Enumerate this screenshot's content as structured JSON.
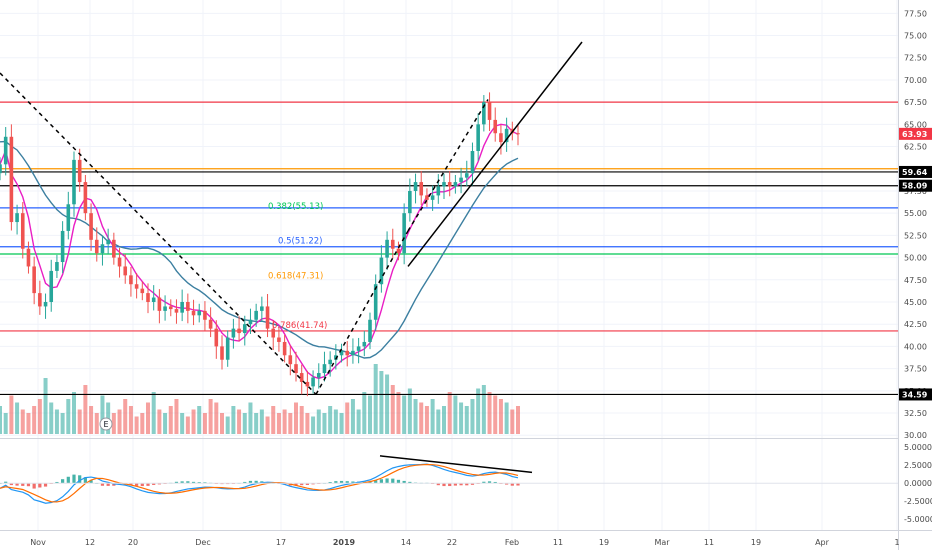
{
  "chart_data": [
    {
      "type": "candlestick",
      "price_axis": {
        "range": [
          29.8,
          79
        ],
        "ticks": [
          "77.50",
          "75.00",
          "72.50",
          "70.00",
          "67.50",
          "65.00",
          "62.50",
          "60.00",
          "57.50",
          "55.00",
          "52.50",
          "50.00",
          "47.50",
          "45.00",
          "42.50",
          "40.00",
          "37.50",
          "35.00",
          "32.50",
          "30.00"
        ],
        "scale": "linear"
      },
      "time_axis": {
        "ticks": [
          "Nov",
          "12",
          "20",
          "Dec",
          "17",
          "2019",
          "14",
          "22",
          "Feb",
          "11",
          "19",
          "Mar",
          "11",
          "19",
          "Apr",
          "1"
        ],
        "bold_ticks": [
          "2019"
        ]
      },
      "close_price": [
        60.5,
        63.6,
        54.0,
        55.0,
        51.0,
        49.0,
        46.0,
        44.5,
        45.0,
        48.5,
        49.5,
        53.0,
        56.0,
        61.0,
        58.5,
        55.0,
        52.0,
        50.5,
        51.5,
        52.0,
        50.0,
        49.0,
        48.0,
        47.0,
        46.5,
        46.0,
        45.0,
        45.5,
        44.0,
        44.5,
        44.2,
        43.8,
        45.0,
        44.0,
        43.5,
        44.0,
        43.0,
        42.0,
        40.0,
        38.5,
        41.0,
        42.0,
        41.5,
        42.5,
        43.0,
        44.0,
        44.5,
        42.0,
        41.0,
        40.5,
        39.0,
        38.0,
        37.0,
        36.0,
        35.5,
        36.5,
        37.0,
        38.0,
        38.5,
        39.0,
        39.5,
        39.0,
        39.5,
        40.0,
        40.5,
        43.0,
        47.0,
        50.0,
        52.0,
        51.0,
        50.5,
        55.0,
        57.5,
        58.5,
        57.0,
        56.5,
        57.0,
        58.0,
        58.5,
        58.0,
        58.5,
        59.0,
        59.5,
        62.0,
        65.0,
        67.5,
        65.5,
        64.0,
        63.0,
        64.5,
        64.0,
        63.9
      ],
      "volume_relative": [
        0.4,
        0.3,
        0.55,
        0.45,
        0.35,
        0.3,
        0.4,
        0.5,
        0.8,
        0.45,
        0.35,
        0.3,
        0.5,
        0.6,
        0.35,
        0.7,
        0.4,
        0.3,
        0.55,
        0.45,
        0.3,
        0.35,
        0.5,
        0.4,
        0.25,
        0.3,
        0.45,
        0.6,
        0.35,
        0.3,
        0.4,
        0.5,
        0.3,
        0.25,
        0.35,
        0.4,
        0.3,
        0.5,
        0.45,
        0.3,
        0.25,
        0.4,
        0.35,
        0.3,
        0.45,
        0.3,
        0.35,
        0.25,
        0.4,
        0.3,
        0.35,
        0.3,
        0.45,
        0.4,
        0.3,
        0.25,
        0.35,
        0.3,
        0.4,
        0.35,
        0.3,
        0.45,
        0.5,
        0.35,
        0.6,
        0.55,
        1.0,
        0.9,
        0.85,
        0.7,
        0.6,
        0.55,
        0.65,
        0.5,
        0.45,
        0.4,
        0.5,
        0.35,
        0.4,
        0.6,
        0.55,
        0.45,
        0.4,
        0.5,
        0.65,
        0.7,
        0.6,
        0.55,
        0.5,
        0.45,
        0.35,
        0.4
      ],
      "horizontal_levels": [
        {
          "price": 67.5,
          "color": "#f23645"
        },
        {
          "price": 60.0,
          "color": "#ff9800"
        },
        {
          "price": 59.64,
          "color": "#000000",
          "tag": "59.64"
        },
        {
          "price": 58.09,
          "color": "#000000",
          "tag": "58.09"
        },
        {
          "price": 55.6,
          "color": "#2962ff"
        },
        {
          "price": 51.22,
          "color": "#2962ff"
        },
        {
          "price": 50.4,
          "color": "#00c853"
        },
        {
          "price": 41.74,
          "color": "#f23645"
        },
        {
          "price": 34.59,
          "color": "#000000",
          "tag": "34.59"
        }
      ],
      "fib_labels": [
        {
          "text": "0.382(55.13)",
          "price": 55.13,
          "color": "#00c853"
        },
        {
          "text": "0.5(51.22)",
          "price": 51.22,
          "color": "#2962ff"
        },
        {
          "text": "0.618(47.31)",
          "price": 47.31,
          "color": "#ff9800"
        },
        {
          "text": "0.786(41.74)",
          "price": 41.74,
          "color": "#f23645"
        }
      ],
      "price_tag": {
        "text": "63.93",
        "price": 63.93,
        "color": "#f23645"
      },
      "event_marker": "E",
      "colors": {
        "up": "#26a69a",
        "down": "#ef5350",
        "ma_fast": "#e91ec4",
        "ma_slow": "#3c7fa0"
      }
    },
    {
      "type": "line",
      "indicator": "MACD",
      "y_axis": {
        "range": [
          -6.5,
          6
        ],
        "ticks": [
          "5.0000",
          "2.5000",
          "0.0000",
          "-2.5000",
          "-5.0000"
        ]
      },
      "colors": {
        "macd": "#2196f3",
        "signal": "#ff6d00",
        "hist_up": "#26a69a",
        "hist_down": "#ef5350"
      }
    }
  ]
}
